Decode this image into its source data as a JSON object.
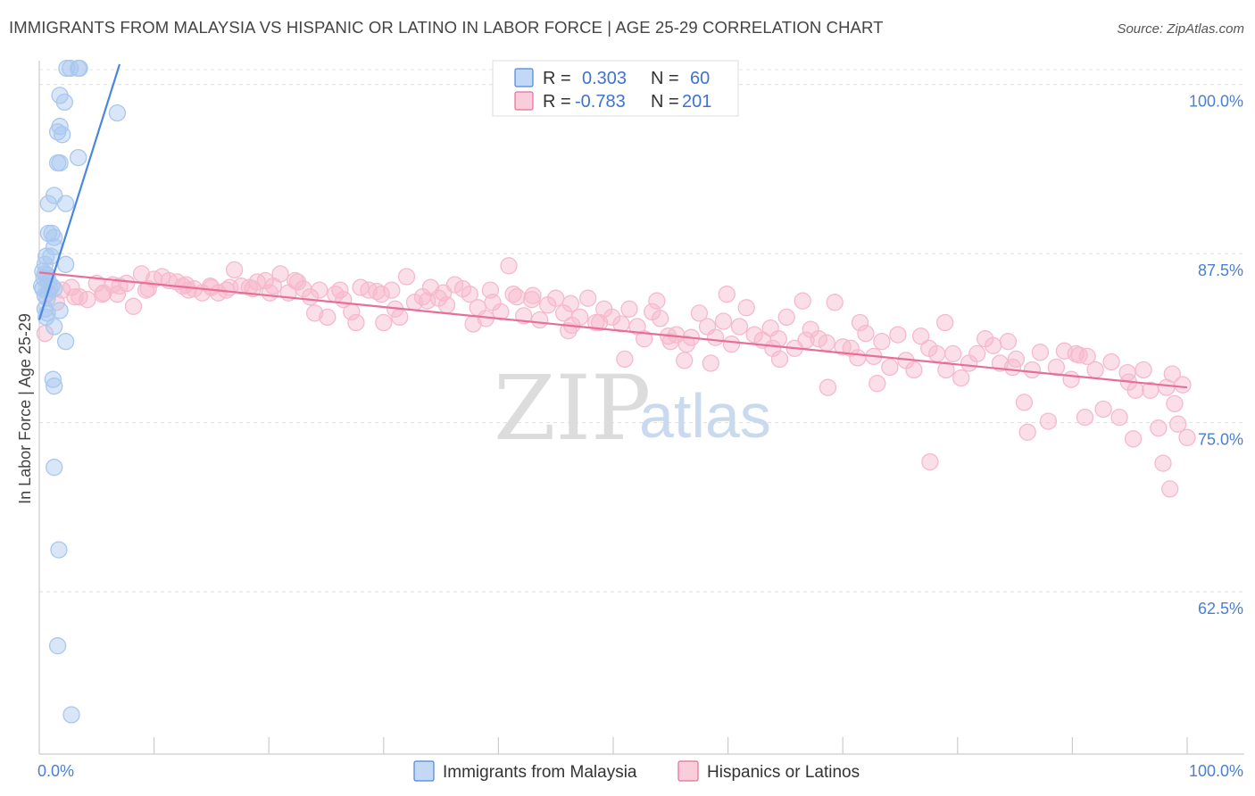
{
  "title": "IMMIGRANTS FROM MALAYSIA VS HISPANIC OR LATINO IN LABOR FORCE | AGE 25-29 CORRELATION CHART",
  "source": "Source: ZipAtlas.com",
  "watermark": {
    "zip": "ZIP",
    "atlas": "atlas"
  },
  "legend": {
    "rows": [
      {
        "r_label": "R =",
        "r_value": "0.303",
        "n_label": "N =",
        "n_value": "60",
        "color": "#a9c7ef"
      },
      {
        "r_label": "R =",
        "r_value": "-0.783",
        "n_label": "N =",
        "n_value": "201",
        "color": "#f6b9cb"
      }
    ]
  },
  "bottom_legend": [
    {
      "label": "Immigrants from Malaysia",
      "color": "#a9c7ef"
    },
    {
      "label": "Hispanics or Latinos",
      "color": "#f6b9cb"
    }
  ],
  "chart_data": {
    "type": "scatter",
    "xlabel": "",
    "ylabel": "In Labor Force | Age 25-29",
    "xlim": [
      0,
      100
    ],
    "ylim": [
      50.5,
      101.5
    ],
    "x_tick_labels": [
      "0.0%",
      "100.0%"
    ],
    "y_ticks": [
      62.5,
      75.0,
      87.5,
      100.0
    ],
    "y_tick_labels": [
      "62.5%",
      "75.0%",
      "87.5%",
      "100.0%"
    ],
    "grid": true,
    "legend_position": "top-center",
    "series": [
      {
        "name": "Immigrants from Malaysia",
        "color": "#4a86e0",
        "fill": "#a9c7ef",
        "trend": {
          "x": [
            0.0,
            7.0
          ],
          "y": [
            82.6,
            101.5
          ]
        },
        "points": [
          [
            2.4,
            101.2
          ],
          [
            2.7,
            101.2
          ],
          [
            3.4,
            101.2
          ],
          [
            3.5,
            101.2
          ],
          [
            1.8,
            99.2
          ],
          [
            2.2,
            98.7
          ],
          [
            6.8,
            97.9
          ],
          [
            1.8,
            96.9
          ],
          [
            1.6,
            96.5
          ],
          [
            2.0,
            96.3
          ],
          [
            3.4,
            94.6
          ],
          [
            1.6,
            94.2
          ],
          [
            1.8,
            94.2
          ],
          [
            1.3,
            91.8
          ],
          [
            0.8,
            91.2
          ],
          [
            2.3,
            91.2
          ],
          [
            0.8,
            89.0
          ],
          [
            1.1,
            89.0
          ],
          [
            1.3,
            88.7
          ],
          [
            1.3,
            88.0
          ],
          [
            0.6,
            87.3
          ],
          [
            1.0,
            87.3
          ],
          [
            0.5,
            86.7
          ],
          [
            2.3,
            86.7
          ],
          [
            0.3,
            86.2
          ],
          [
            0.5,
            86.0
          ],
          [
            0.7,
            85.9
          ],
          [
            0.4,
            85.7
          ],
          [
            0.8,
            85.4
          ],
          [
            1.1,
            85.1
          ],
          [
            0.2,
            85.1
          ],
          [
            0.3,
            84.9
          ],
          [
            0.9,
            84.9
          ],
          [
            1.3,
            84.9
          ],
          [
            0.5,
            84.4
          ],
          [
            0.7,
            84.2
          ],
          [
            0.5,
            83.4
          ],
          [
            0.7,
            83.1
          ],
          [
            1.8,
            83.3
          ],
          [
            0.6,
            82.8
          ],
          [
            1.3,
            82.1
          ],
          [
            2.3,
            81.0
          ],
          [
            1.2,
            78.2
          ],
          [
            1.3,
            77.7
          ],
          [
            1.3,
            71.7
          ],
          [
            1.7,
            65.6
          ],
          [
            1.6,
            58.5
          ],
          [
            2.8,
            53.4
          ]
        ]
      },
      {
        "name": "Hispanics or Latinos",
        "color": "#e56f97",
        "fill": "#f6b9cb",
        "trend": {
          "x": [
            0.0,
            100.0
          ],
          "y": [
            86.1,
            77.6
          ]
        },
        "points": [
          [
            0.5,
            81.6
          ],
          [
            0.8,
            84.6
          ],
          [
            1.5,
            83.9
          ],
          [
            2.0,
            84.8
          ],
          [
            2.8,
            85.0
          ],
          [
            3.5,
            84.3
          ],
          [
            4.2,
            84.1
          ],
          [
            5.0,
            85.3
          ],
          [
            5.6,
            84.6
          ],
          [
            6.4,
            85.2
          ],
          [
            7.0,
            85.1
          ],
          [
            7.6,
            85.3
          ],
          [
            8.2,
            83.6
          ],
          [
            8.9,
            86.0
          ],
          [
            9.5,
            84.9
          ],
          [
            10.0,
            85.6
          ],
          [
            10.7,
            85.8
          ],
          [
            11.3,
            85.5
          ],
          [
            12.0,
            85.4
          ],
          [
            12.8,
            85.2
          ],
          [
            13.5,
            84.9
          ],
          [
            14.2,
            84.6
          ],
          [
            15.0,
            85.0
          ],
          [
            15.6,
            84.6
          ],
          [
            16.3,
            84.8
          ],
          [
            17.0,
            86.3
          ],
          [
            17.6,
            85.1
          ],
          [
            18.3,
            85.0
          ],
          [
            19.0,
            85.4
          ],
          [
            19.7,
            85.5
          ],
          [
            20.4,
            85.1
          ],
          [
            21.0,
            86.0
          ],
          [
            21.7,
            84.6
          ],
          [
            22.3,
            85.5
          ],
          [
            23.0,
            84.9
          ],
          [
            23.6,
            84.3
          ],
          [
            24.4,
            84.8
          ],
          [
            25.1,
            82.8
          ],
          [
            25.8,
            84.5
          ],
          [
            26.5,
            84.1
          ],
          [
            27.2,
            83.2
          ],
          [
            28.0,
            85.0
          ],
          [
            28.7,
            84.8
          ],
          [
            29.4,
            84.7
          ],
          [
            30.0,
            82.4
          ],
          [
            30.7,
            84.8
          ],
          [
            31.4,
            82.8
          ],
          [
            32.0,
            85.8
          ],
          [
            32.7,
            83.9
          ],
          [
            33.4,
            84.3
          ],
          [
            34.1,
            85.0
          ],
          [
            34.8,
            84.2
          ],
          [
            35.5,
            83.7
          ],
          [
            36.2,
            85.2
          ],
          [
            36.9,
            84.9
          ],
          [
            37.5,
            84.5
          ],
          [
            38.2,
            83.5
          ],
          [
            38.9,
            82.7
          ],
          [
            39.5,
            83.9
          ],
          [
            40.2,
            83.2
          ],
          [
            40.9,
            86.6
          ],
          [
            41.6,
            84.3
          ],
          [
            42.2,
            82.9
          ],
          [
            42.9,
            84.1
          ],
          [
            43.6,
            82.6
          ],
          [
            44.3,
            83.7
          ],
          [
            45.0,
            84.2
          ],
          [
            45.7,
            83.1
          ],
          [
            46.4,
            82.2
          ],
          [
            47.1,
            82.8
          ],
          [
            47.8,
            84.2
          ],
          [
            48.5,
            82.4
          ],
          [
            49.2,
            83.4
          ],
          [
            49.9,
            82.8
          ],
          [
            50.7,
            82.3
          ],
          [
            51.4,
            83.4
          ],
          [
            52.1,
            82.1
          ],
          [
            52.7,
            81.2
          ],
          [
            53.4,
            83.2
          ],
          [
            54.1,
            82.7
          ],
          [
            54.8,
            81.4
          ],
          [
            55.5,
            81.5
          ],
          [
            56.2,
            79.6
          ],
          [
            56.8,
            81.3
          ],
          [
            57.5,
            83.1
          ],
          [
            58.2,
            82.1
          ],
          [
            58.9,
            81.3
          ],
          [
            59.6,
            82.5
          ],
          [
            60.3,
            80.8
          ],
          [
            61.0,
            82.1
          ],
          [
            61.6,
            83.5
          ],
          [
            62.3,
            81.5
          ],
          [
            63.0,
            81.1
          ],
          [
            63.7,
            82.0
          ],
          [
            64.4,
            81.2
          ],
          [
            65.1,
            82.8
          ],
          [
            65.8,
            80.5
          ],
          [
            66.5,
            84.0
          ],
          [
            67.2,
            81.9
          ],
          [
            67.9,
            81.2
          ],
          [
            68.6,
            80.9
          ],
          [
            69.3,
            83.9
          ],
          [
            70.0,
            80.6
          ],
          [
            70.7,
            80.5
          ],
          [
            71.3,
            79.8
          ],
          [
            72.0,
            81.6
          ],
          [
            72.7,
            79.9
          ],
          [
            73.4,
            81.0
          ],
          [
            74.1,
            79.1
          ],
          [
            74.8,
            81.5
          ],
          [
            75.5,
            79.6
          ],
          [
            76.2,
            78.9
          ],
          [
            76.8,
            81.4
          ],
          [
            77.5,
            80.5
          ],
          [
            78.2,
            80.1
          ],
          [
            78.9,
            82.4
          ],
          [
            79.6,
            80.1
          ],
          [
            80.3,
            78.3
          ],
          [
            81.0,
            79.4
          ],
          [
            81.7,
            80.1
          ],
          [
            82.4,
            81.2
          ],
          [
            83.1,
            80.7
          ],
          [
            83.7,
            79.4
          ],
          [
            84.4,
            81.0
          ],
          [
            85.1,
            79.7
          ],
          [
            85.8,
            76.5
          ],
          [
            86.5,
            78.9
          ],
          [
            87.2,
            80.2
          ],
          [
            87.9,
            75.1
          ],
          [
            88.6,
            79.1
          ],
          [
            89.3,
            80.3
          ],
          [
            89.9,
            78.2
          ],
          [
            90.6,
            80.0
          ],
          [
            91.3,
            79.9
          ],
          [
            92.0,
            78.9
          ],
          [
            92.7,
            76.0
          ],
          [
            93.4,
            79.5
          ],
          [
            94.1,
            75.4
          ],
          [
            94.8,
            78.7
          ],
          [
            95.5,
            77.4
          ],
          [
            96.2,
            78.9
          ],
          [
            96.8,
            77.4
          ],
          [
            97.5,
            74.6
          ],
          [
            98.2,
            77.6
          ],
          [
            98.9,
            76.4
          ],
          [
            99.6,
            77.8
          ],
          [
            100.0,
            73.9
          ],
          [
            99.2,
            74.9
          ],
          [
            97.9,
            72.0
          ],
          [
            98.5,
            70.1
          ],
          [
            95.3,
            73.8
          ],
          [
            91.1,
            75.4
          ],
          [
            86.1,
            74.3
          ],
          [
            77.6,
            72.1
          ],
          [
            73.0,
            77.9
          ],
          [
            68.7,
            77.6
          ],
          [
            64.5,
            79.7
          ],
          [
            58.5,
            79.4
          ],
          [
            55.0,
            81.0
          ],
          [
            51.0,
            79.7
          ],
          [
            46.3,
            83.8
          ],
          [
            43.0,
            84.4
          ],
          [
            39.3,
            84.8
          ],
          [
            35.2,
            84.6
          ],
          [
            31.0,
            83.4
          ],
          [
            27.6,
            82.4
          ],
          [
            24.0,
            83.1
          ],
          [
            20.1,
            84.6
          ],
          [
            16.6,
            85.0
          ],
          [
            13.0,
            84.8
          ],
          [
            9.3,
            84.8
          ],
          [
            5.5,
            84.5
          ],
          [
            3.1,
            84.3
          ],
          [
            6.8,
            84.5
          ],
          [
            12.5,
            85.1
          ],
          [
            18.6,
            84.9
          ],
          [
            26.2,
            84.8
          ],
          [
            33.8,
            84.0
          ],
          [
            41.3,
            84.5
          ],
          [
            48.8,
            82.4
          ],
          [
            56.4,
            80.8
          ],
          [
            63.9,
            80.5
          ],
          [
            71.5,
            82.4
          ],
          [
            79.0,
            78.9
          ],
          [
            84.8,
            79.1
          ],
          [
            90.3,
            80.1
          ],
          [
            94.9,
            78.0
          ],
          [
            98.7,
            78.6
          ],
          [
            59.9,
            84.5
          ],
          [
            66.8,
            81.1
          ],
          [
            53.8,
            84.0
          ],
          [
            46.1,
            81.8
          ],
          [
            37.8,
            82.3
          ],
          [
            29.8,
            84.5
          ],
          [
            22.5,
            85.4
          ],
          [
            14.9,
            85.1
          ]
        ]
      }
    ]
  }
}
